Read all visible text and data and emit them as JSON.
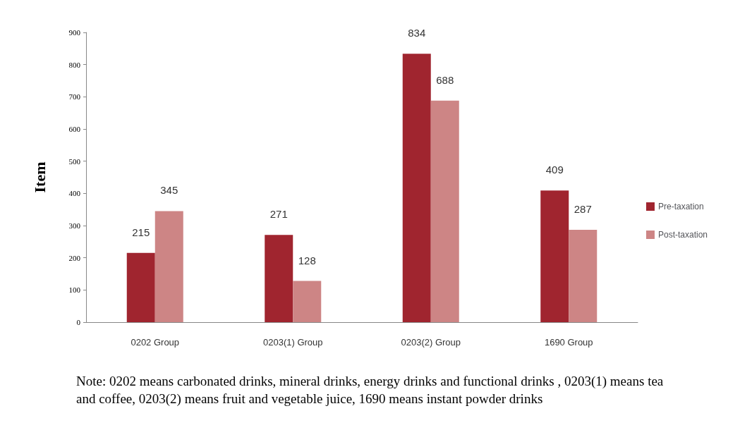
{
  "chart_data": {
    "type": "bar",
    "ylabel": "Item",
    "categories": [
      "0202 Group",
      "0203(1) Group",
      "0203(2) Group",
      "1690 Group"
    ],
    "series": [
      {
        "name": "Pre-taxation",
        "color": "#a0252f",
        "values": [
          215,
          271,
          834,
          409
        ]
      },
      {
        "name": "Post-taxation",
        "color": "#cd8585",
        "values": [
          345,
          128,
          688,
          287
        ]
      }
    ],
    "ylim": [
      0,
      900
    ],
    "yticks": [
      0,
      100,
      200,
      300,
      400,
      500,
      600,
      700,
      800,
      900
    ],
    "grid": false,
    "legend": "right",
    "data_labels": true,
    "annotations": [
      "Note: 0202 means carbonated drinks, mineral drinks, energy drinks and functional drinks , 0203(1) means tea and coffee, 0203(2) means fruit and vegetable juice, 1690 means instant powder drinks"
    ]
  }
}
